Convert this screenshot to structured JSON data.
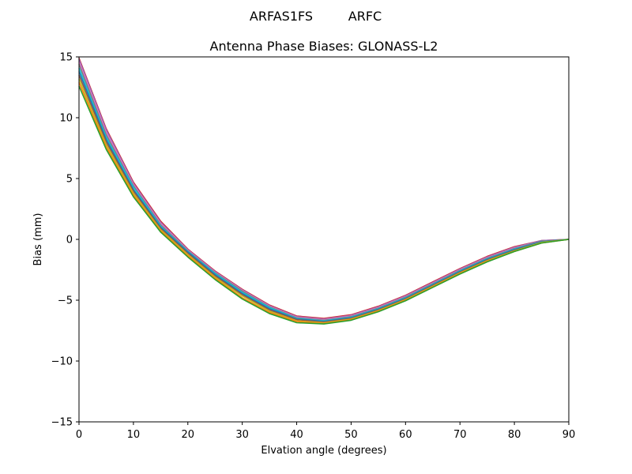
{
  "header": {
    "left_label": "ARFAS1FS",
    "right_label": "ARFC"
  },
  "chart_data": {
    "type": "line",
    "title": "Antenna Phase Biases: GLONASS-L2",
    "xlabel": "Elvation angle (degrees)",
    "ylabel": "Bias (mm)",
    "xlim": [
      0,
      90
    ],
    "ylim": [
      -15,
      15
    ],
    "x_ticks": [
      0,
      10,
      20,
      30,
      40,
      50,
      60,
      70,
      80,
      90
    ],
    "y_ticks": [
      -15,
      -10,
      -5,
      0,
      5,
      10,
      15
    ],
    "y_tick_labels": [
      "−15",
      "−10",
      "−5",
      "0",
      "5",
      "10",
      "15"
    ],
    "grid": false,
    "legend": "none",
    "x": [
      0,
      5,
      10,
      15,
      20,
      25,
      30,
      35,
      40,
      45,
      50,
      55,
      60,
      65,
      70,
      75,
      80,
      85,
      90
    ],
    "series": [
      {
        "color": "#d62728",
        "values": [
          14.9,
          9.1,
          4.7,
          1.5,
          -0.8,
          -2.6,
          -4.1,
          -5.4,
          -6.3,
          -6.5,
          -6.2,
          -5.5,
          -4.6,
          -3.5,
          -2.4,
          -1.4,
          -0.6,
          -0.1,
          0.0
        ]
      },
      {
        "color": "#9467bd",
        "values": [
          14.8,
          9.0,
          4.6,
          1.4,
          -0.85,
          -2.65,
          -4.15,
          -5.45,
          -6.35,
          -6.55,
          -6.25,
          -5.55,
          -4.65,
          -3.55,
          -2.45,
          -1.45,
          -0.65,
          -0.1,
          0.0
        ]
      },
      {
        "color": "#e377c2",
        "values": [
          14.6,
          8.8,
          4.5,
          1.3,
          -0.9,
          -2.7,
          -4.2,
          -5.5,
          -6.4,
          -6.6,
          -6.3,
          -5.6,
          -4.7,
          -3.6,
          -2.5,
          -1.5,
          -0.7,
          -0.15,
          0.0
        ]
      },
      {
        "color": "#7f7f7f",
        "values": [
          14.4,
          8.6,
          4.4,
          1.2,
          -0.95,
          -2.75,
          -4.25,
          -5.55,
          -6.45,
          -6.65,
          -6.35,
          -5.65,
          -4.75,
          -3.65,
          -2.55,
          -1.55,
          -0.75,
          -0.15,
          0.0
        ]
      },
      {
        "color": "#17becf",
        "values": [
          14.1,
          8.4,
          4.3,
          1.1,
          -1.0,
          -2.8,
          -4.35,
          -5.6,
          -6.5,
          -6.7,
          -6.4,
          -5.7,
          -4.8,
          -3.7,
          -2.6,
          -1.6,
          -0.8,
          -0.2,
          0.0
        ]
      },
      {
        "color": "#1f77b4",
        "values": [
          13.8,
          8.2,
          4.1,
          1.0,
          -1.05,
          -2.9,
          -4.45,
          -5.7,
          -6.55,
          -6.75,
          -6.45,
          -5.75,
          -4.85,
          -3.75,
          -2.65,
          -1.65,
          -0.85,
          -0.2,
          0.0
        ]
      },
      {
        "color": "#8c564b",
        "values": [
          13.5,
          8.0,
          3.95,
          0.9,
          -1.15,
          -3.0,
          -4.55,
          -5.8,
          -6.6,
          -6.8,
          -6.5,
          -5.8,
          -4.9,
          -3.8,
          -2.7,
          -1.7,
          -0.9,
          -0.25,
          0.0
        ]
      },
      {
        "color": "#bcbd22",
        "values": [
          13.2,
          7.8,
          3.8,
          0.8,
          -1.25,
          -3.1,
          -4.65,
          -5.9,
          -6.7,
          -6.85,
          -6.55,
          -5.85,
          -4.95,
          -3.85,
          -2.75,
          -1.75,
          -0.95,
          -0.25,
          0.0
        ]
      },
      {
        "color": "#ff7f0e",
        "values": [
          12.9,
          7.6,
          3.65,
          0.7,
          -1.35,
          -3.2,
          -4.8,
          -6.0,
          -6.75,
          -6.9,
          -6.6,
          -5.9,
          -5.0,
          -3.9,
          -2.8,
          -1.8,
          -1.0,
          -0.3,
          0.0
        ]
      },
      {
        "color": "#2ca02c",
        "values": [
          12.6,
          7.4,
          3.5,
          0.6,
          -1.45,
          -3.3,
          -4.9,
          -6.1,
          -6.85,
          -6.95,
          -6.65,
          -5.95,
          -5.05,
          -3.95,
          -2.85,
          -1.85,
          -1.0,
          -0.3,
          0.0
        ]
      }
    ]
  }
}
